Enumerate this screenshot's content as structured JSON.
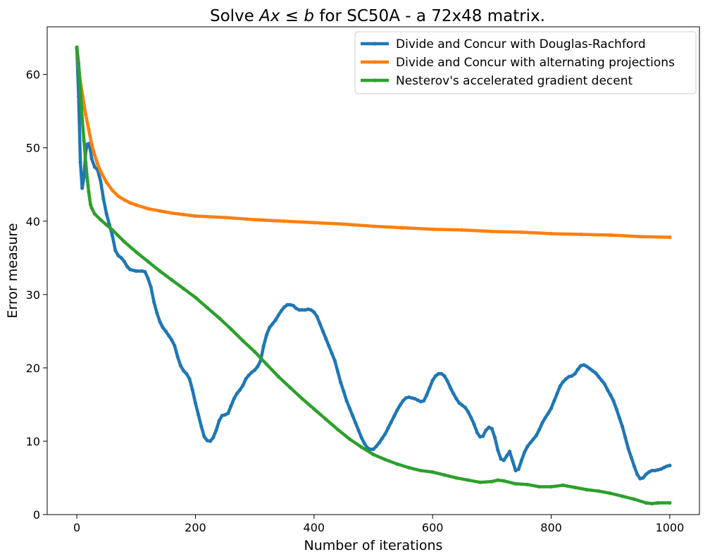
{
  "chart_data": {
    "type": "line",
    "title": "Solve Ax ≤ b for SC50A - a 72x48 matrix.",
    "title_parts": {
      "prefix": "Solve ",
      "math_a": "A",
      "math_x": "x",
      "leq": " ≤ ",
      "math_b": "b",
      "suffix": " for SC50A - a 72x48 matrix."
    },
    "xlabel": "Number of iterations",
    "ylabel": "Error measure",
    "xlim": [
      -50,
      1050
    ],
    "ylim": [
      0,
      66.5
    ],
    "xticks": [
      0,
      200,
      400,
      600,
      800,
      1000
    ],
    "yticks": [
      0,
      10,
      20,
      30,
      40,
      50,
      60
    ],
    "grid": false,
    "legend_position": "top-right",
    "series": [
      {
        "name": "Divide and Concur with Douglas-Rachford",
        "color": "#1f77b4",
        "points": [
          [
            0,
            63.5
          ],
          [
            3,
            57
          ],
          [
            6,
            48
          ],
          [
            9,
            44.5
          ],
          [
            12,
            46
          ],
          [
            15,
            49.5
          ],
          [
            18,
            50.5
          ],
          [
            21,
            50.6
          ],
          [
            25,
            48.5
          ],
          [
            30,
            47.4
          ],
          [
            35,
            47
          ],
          [
            40,
            45.5
          ],
          [
            45,
            43
          ],
          [
            50,
            41
          ],
          [
            55,
            39.5
          ],
          [
            60,
            38
          ],
          [
            65,
            36
          ],
          [
            70,
            35.3
          ],
          [
            75,
            35
          ],
          [
            80,
            34.5
          ],
          [
            85,
            33.8
          ],
          [
            90,
            33.4
          ],
          [
            100,
            33.2
          ],
          [
            110,
            33.2
          ],
          [
            115,
            33.1
          ],
          [
            120,
            32.2
          ],
          [
            125,
            31
          ],
          [
            130,
            29
          ],
          [
            135,
            27.5
          ],
          [
            140,
            26.3
          ],
          [
            145,
            25.5
          ],
          [
            150,
            25
          ],
          [
            155,
            24.4
          ],
          [
            160,
            23.8
          ],
          [
            165,
            23
          ],
          [
            170,
            21.5
          ],
          [
            175,
            20.3
          ],
          [
            180,
            19.6
          ],
          [
            185,
            19.2
          ],
          [
            190,
            18.5
          ],
          [
            195,
            17
          ],
          [
            200,
            15.2
          ],
          [
            205,
            13.6
          ],
          [
            210,
            12
          ],
          [
            215,
            10.6
          ],
          [
            220,
            10.1
          ],
          [
            225,
            10
          ],
          [
            230,
            10.5
          ],
          [
            235,
            11.5
          ],
          [
            240,
            12.8
          ],
          [
            245,
            13.5
          ],
          [
            250,
            13.6
          ],
          [
            255,
            13.8
          ],
          [
            260,
            14.8
          ],
          [
            265,
            15.8
          ],
          [
            270,
            16.5
          ],
          [
            275,
            17
          ],
          [
            280,
            17.6
          ],
          [
            285,
            18.5
          ],
          [
            290,
            19
          ],
          [
            295,
            19.4
          ],
          [
            300,
            19.7
          ],
          [
            305,
            20.2
          ],
          [
            310,
            21
          ],
          [
            315,
            23
          ],
          [
            320,
            24.5
          ],
          [
            325,
            25.5
          ],
          [
            330,
            26
          ],
          [
            335,
            26.5
          ],
          [
            340,
            27.2
          ],
          [
            345,
            27.8
          ],
          [
            350,
            28.3
          ],
          [
            355,
            28.6
          ],
          [
            360,
            28.6
          ],
          [
            365,
            28.5
          ],
          [
            370,
            28.1
          ],
          [
            375,
            27.9
          ],
          [
            380,
            27.9
          ],
          [
            385,
            27.9
          ],
          [
            390,
            28
          ],
          [
            395,
            27.9
          ],
          [
            400,
            27.6
          ],
          [
            405,
            27
          ],
          [
            410,
            26
          ],
          [
            415,
            25
          ],
          [
            420,
            24
          ],
          [
            425,
            23
          ],
          [
            430,
            22
          ],
          [
            435,
            21
          ],
          [
            440,
            19.5
          ],
          [
            445,
            18
          ],
          [
            450,
            16.8
          ],
          [
            455,
            15.5
          ],
          [
            460,
            14.5
          ],
          [
            465,
            13.5
          ],
          [
            470,
            12.5
          ],
          [
            475,
            11.5
          ],
          [
            480,
            10.5
          ],
          [
            485,
            9.7
          ],
          [
            490,
            9.1
          ],
          [
            495,
            8.9
          ],
          [
            500,
            8.9
          ],
          [
            505,
            9.3
          ],
          [
            510,
            9.8
          ],
          [
            515,
            10.4
          ],
          [
            520,
            11
          ],
          [
            525,
            11.8
          ],
          [
            530,
            12.6
          ],
          [
            535,
            13.4
          ],
          [
            540,
            14.2
          ],
          [
            545,
            14.9
          ],
          [
            550,
            15.5
          ],
          [
            555,
            15.9
          ],
          [
            560,
            16
          ],
          [
            565,
            15.9
          ],
          [
            570,
            15.8
          ],
          [
            575,
            15.6
          ],
          [
            580,
            15.4
          ],
          [
            585,
            15.5
          ],
          [
            590,
            16.3
          ],
          [
            595,
            17.3
          ],
          [
            600,
            18.3
          ],
          [
            605,
            18.9
          ],
          [
            610,
            19.2
          ],
          [
            615,
            19.2
          ],
          [
            620,
            18.9
          ],
          [
            625,
            18.2
          ],
          [
            630,
            17.3
          ],
          [
            635,
            16.5
          ],
          [
            640,
            15.8
          ],
          [
            645,
            15.2
          ],
          [
            650,
            14.9
          ],
          [
            655,
            14.6
          ],
          [
            660,
            14
          ],
          [
            665,
            13.2
          ],
          [
            670,
            12.3
          ],
          [
            675,
            11.2
          ],
          [
            680,
            10.6
          ],
          [
            685,
            10.7
          ],
          [
            690,
            11.5
          ],
          [
            695,
            11.9
          ],
          [
            700,
            11.7
          ],
          [
            705,
            10.5
          ],
          [
            710,
            8.8
          ],
          [
            715,
            7.6
          ],
          [
            720,
            7.4
          ],
          [
            725,
            8
          ],
          [
            730,
            8.6
          ],
          [
            735,
            7.3
          ],
          [
            740,
            6
          ],
          [
            745,
            6.2
          ],
          [
            750,
            7.4
          ],
          [
            755,
            8.5
          ],
          [
            760,
            9.3
          ],
          [
            765,
            9.8
          ],
          [
            770,
            10.3
          ],
          [
            775,
            10.8
          ],
          [
            780,
            11.6
          ],
          [
            785,
            12.5
          ],
          [
            790,
            13.2
          ],
          [
            795,
            13.8
          ],
          [
            800,
            14.5
          ],
          [
            805,
            15.5
          ],
          [
            810,
            16.5
          ],
          [
            815,
            17.5
          ],
          [
            820,
            18.1
          ],
          [
            825,
            18.5
          ],
          [
            830,
            18.8
          ],
          [
            835,
            18.9
          ],
          [
            840,
            19.2
          ],
          [
            845,
            19.8
          ],
          [
            850,
            20.3
          ],
          [
            855,
            20.4
          ],
          [
            860,
            20.2
          ],
          [
            865,
            19.9
          ],
          [
            870,
            19.6
          ],
          [
            875,
            19.3
          ],
          [
            880,
            18.8
          ],
          [
            885,
            18.3
          ],
          [
            890,
            17.8
          ],
          [
            895,
            17
          ],
          [
            900,
            16.3
          ],
          [
            905,
            15.5
          ],
          [
            910,
            14.4
          ],
          [
            915,
            13.2
          ],
          [
            920,
            12
          ],
          [
            925,
            10.5
          ],
          [
            930,
            9
          ],
          [
            935,
            7.8
          ],
          [
            940,
            6.6
          ],
          [
            945,
            5.5
          ],
          [
            950,
            4.9
          ],
          [
            955,
            5
          ],
          [
            960,
            5.5
          ],
          [
            965,
            5.8
          ],
          [
            970,
            6
          ],
          [
            975,
            6
          ],
          [
            980,
            6.1
          ],
          [
            985,
            6.2
          ],
          [
            990,
            6.4
          ],
          [
            995,
            6.6
          ],
          [
            1000,
            6.7
          ]
        ]
      },
      {
        "name": "Divide and Concur with alternating projections",
        "color": "#ff7f0e",
        "points": [
          [
            0,
            63.7
          ],
          [
            3,
            61
          ],
          [
            6,
            59
          ],
          [
            10,
            57
          ],
          [
            15,
            54.5
          ],
          [
            20,
            52.5
          ],
          [
            25,
            50.5
          ],
          [
            30,
            49
          ],
          [
            35,
            47.8
          ],
          [
            40,
            46.8
          ],
          [
            50,
            45.3
          ],
          [
            60,
            44.2
          ],
          [
            70,
            43.4
          ],
          [
            80,
            42.9
          ],
          [
            90,
            42.5
          ],
          [
            100,
            42.2
          ],
          [
            120,
            41.7
          ],
          [
            140,
            41.4
          ],
          [
            160,
            41.1
          ],
          [
            180,
            40.9
          ],
          [
            200,
            40.7
          ],
          [
            250,
            40.5
          ],
          [
            300,
            40.2
          ],
          [
            350,
            40
          ],
          [
            400,
            39.8
          ],
          [
            450,
            39.6
          ],
          [
            500,
            39.3
          ],
          [
            550,
            39.1
          ],
          [
            600,
            38.9
          ],
          [
            650,
            38.8
          ],
          [
            700,
            38.6
          ],
          [
            750,
            38.5
          ],
          [
            800,
            38.3
          ],
          [
            850,
            38.2
          ],
          [
            900,
            38.1
          ],
          [
            950,
            37.9
          ],
          [
            1000,
            37.8
          ]
        ]
      },
      {
        "name": "Nesterov's accelerated gradient decent",
        "color": "#2ca02c",
        "points": [
          [
            0,
            63.7
          ],
          [
            3,
            61.5
          ],
          [
            6,
            58
          ],
          [
            9,
            54
          ],
          [
            12,
            51
          ],
          [
            15,
            48
          ],
          [
            18,
            45.5
          ],
          [
            20,
            44
          ],
          [
            23,
            42.3
          ],
          [
            25,
            41.8
          ],
          [
            30,
            41
          ],
          [
            40,
            40.2
          ],
          [
            50,
            39.5
          ],
          [
            60,
            38.8
          ],
          [
            80,
            37.2
          ],
          [
            100,
            35.8
          ],
          [
            120,
            34.5
          ],
          [
            140,
            33.2
          ],
          [
            160,
            32
          ],
          [
            180,
            30.8
          ],
          [
            200,
            29.6
          ],
          [
            220,
            28.2
          ],
          [
            240,
            26.8
          ],
          [
            260,
            25.3
          ],
          [
            280,
            23.7
          ],
          [
            300,
            22.2
          ],
          [
            320,
            20.5
          ],
          [
            340,
            18.8
          ],
          [
            360,
            17.3
          ],
          [
            380,
            15.8
          ],
          [
            400,
            14.4
          ],
          [
            420,
            13
          ],
          [
            440,
            11.6
          ],
          [
            460,
            10.3
          ],
          [
            480,
            9.2
          ],
          [
            500,
            8.2
          ],
          [
            520,
            7.5
          ],
          [
            540,
            6.9
          ],
          [
            560,
            6.4
          ],
          [
            580,
            6
          ],
          [
            600,
            5.8
          ],
          [
            620,
            5.4
          ],
          [
            640,
            5
          ],
          [
            660,
            4.7
          ],
          [
            680,
            4.4
          ],
          [
            700,
            4.5
          ],
          [
            710,
            4.7
          ],
          [
            720,
            4.6
          ],
          [
            740,
            4.2
          ],
          [
            760,
            4.1
          ],
          [
            780,
            3.8
          ],
          [
            800,
            3.8
          ],
          [
            820,
            4
          ],
          [
            840,
            3.7
          ],
          [
            860,
            3.4
          ],
          [
            880,
            3.2
          ],
          [
            900,
            2.9
          ],
          [
            920,
            2.5
          ],
          [
            940,
            2.1
          ],
          [
            960,
            1.6
          ],
          [
            970,
            1.5
          ],
          [
            980,
            1.6
          ],
          [
            1000,
            1.6
          ]
        ]
      }
    ]
  }
}
